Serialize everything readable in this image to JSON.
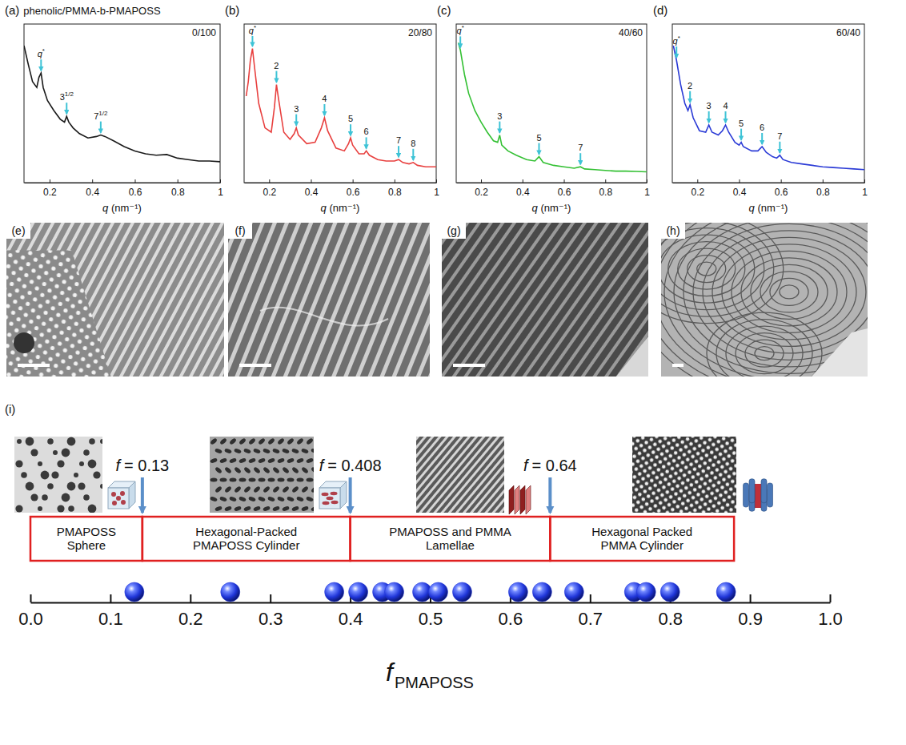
{
  "chart_data": [
    {
      "type": "line",
      "panel": "(a)",
      "title": "phenolic/PMMA-b-PMAPOSS",
      "subtitle": "0/100",
      "x_label": "q (nm⁻¹)",
      "x": [
        0.08,
        0.1,
        0.12,
        0.14,
        0.15,
        0.16,
        0.17,
        0.19,
        0.22,
        0.25,
        0.27,
        0.28,
        0.29,
        0.31,
        0.34,
        0.38,
        0.42,
        0.44,
        0.46,
        0.5,
        0.55,
        0.6,
        0.65,
        0.7,
        0.75,
        0.8,
        0.85,
        0.9,
        0.95,
        1.0
      ],
      "values": [
        95,
        82,
        70,
        66,
        73,
        76,
        66,
        57,
        50,
        44,
        42,
        46,
        42,
        38,
        34,
        31,
        32,
        33,
        32,
        29,
        25,
        22,
        20,
        19,
        19.5,
        17,
        16,
        15,
        15,
        14.5
      ],
      "color": "#1a1a1a",
      "xlim": [
        0.08,
        1.0
      ],
      "xticks": [
        0.2,
        0.4,
        0.6,
        0.8,
        1
      ],
      "ylim": [
        0,
        110
      ],
      "tick_labels": "x",
      "peaks": [
        {
          "q": 0.16,
          "label": "q",
          "sup": "*"
        },
        {
          "q": 0.28,
          "label": "3",
          "sup": "1/2"
        },
        {
          "q": 0.44,
          "label": "7",
          "sup": "1/2"
        }
      ]
    },
    {
      "type": "line",
      "panel": "(b)",
      "subtitle": "20/80",
      "x_label": "q (nm⁻¹)",
      "x": [
        0.09,
        0.1,
        0.11,
        0.12,
        0.13,
        0.15,
        0.18,
        0.21,
        0.225,
        0.235,
        0.245,
        0.27,
        0.3,
        0.32,
        0.33,
        0.34,
        0.38,
        0.42,
        0.45,
        0.465,
        0.48,
        0.52,
        0.56,
        0.58,
        0.59,
        0.6,
        0.63,
        0.655,
        0.665,
        0.68,
        0.72,
        0.76,
        0.8,
        0.82,
        0.84,
        0.87,
        0.89,
        0.91,
        0.95,
        1.0
      ],
      "values": [
        60,
        70,
        85,
        93,
        80,
        55,
        38,
        35,
        52,
        68,
        58,
        35,
        30,
        34,
        38,
        33,
        27,
        28,
        38,
        45,
        36,
        24,
        22,
        27,
        31,
        26,
        20,
        20,
        22,
        19,
        16,
        15,
        15,
        16,
        14,
        13,
        14,
        12,
        11,
        11
      ],
      "color": "#e8403f",
      "xlim": [
        0.08,
        1.0
      ],
      "xticks": [
        0.2,
        0.4,
        0.6,
        0.8,
        1
      ],
      "ylim": [
        0,
        110
      ],
      "tick_labels": "x",
      "peaks": [
        {
          "q": 0.12,
          "label": "q",
          "sup": "*"
        },
        {
          "q": 0.235,
          "label": "2"
        },
        {
          "q": 0.33,
          "label": "3"
        },
        {
          "q": 0.465,
          "label": "4"
        },
        {
          "q": 0.59,
          "label": "5"
        },
        {
          "q": 0.665,
          "label": "6"
        },
        {
          "q": 0.82,
          "label": "7"
        },
        {
          "q": 0.89,
          "label": "8"
        }
      ]
    },
    {
      "type": "line",
      "panel": "(c)",
      "subtitle": "40/60",
      "x_label": "q (nm⁻¹)",
      "x": [
        0.09,
        0.1,
        0.12,
        0.14,
        0.17,
        0.2,
        0.23,
        0.26,
        0.28,
        0.29,
        0.3,
        0.33,
        0.37,
        0.42,
        0.46,
        0.48,
        0.5,
        0.55,
        0.6,
        0.65,
        0.68,
        0.7,
        0.75,
        0.8,
        0.85,
        0.9,
        0.95,
        1.0
      ],
      "values": [
        97,
        92,
        75,
        62,
        50,
        42,
        35,
        29,
        28,
        33,
        26,
        22,
        19,
        16,
        15,
        18,
        14,
        12,
        11,
        10,
        11,
        9.5,
        9,
        8.5,
        8,
        8,
        7.8,
        7.5
      ],
      "color": "#33c033",
      "xlim": [
        0.08,
        1.0
      ],
      "xticks": [
        0.2,
        0.4,
        0.6,
        0.8,
        1
      ],
      "ylim": [
        0,
        110
      ],
      "tick_labels": "x",
      "peaks": [
        {
          "q": 0.1,
          "label": "q",
          "sup": "*"
        },
        {
          "q": 0.29,
          "label": "3"
        },
        {
          "q": 0.48,
          "label": "5"
        },
        {
          "q": 0.68,
          "label": "7"
        }
      ]
    },
    {
      "type": "line",
      "panel": "(d)",
      "subtitle": "60/40",
      "x_label": "q (nm⁻¹)",
      "x": [
        0.085,
        0.1,
        0.12,
        0.14,
        0.155,
        0.165,
        0.18,
        0.21,
        0.24,
        0.255,
        0.27,
        0.3,
        0.32,
        0.335,
        0.35,
        0.38,
        0.4,
        0.41,
        0.42,
        0.46,
        0.49,
        0.51,
        0.53,
        0.56,
        0.58,
        0.595,
        0.61,
        0.65,
        0.7,
        0.75,
        0.8,
        0.85,
        0.9,
        0.95,
        1.0
      ],
      "values": [
        95,
        85,
        68,
        55,
        50,
        54,
        45,
        36,
        35,
        40,
        35,
        33,
        36,
        40,
        35,
        28,
        26,
        28,
        25,
        22,
        22,
        25,
        21,
        18,
        17,
        19,
        16,
        14,
        13,
        12,
        11,
        10.5,
        10,
        9.5,
        9
      ],
      "color": "#2b3bd6",
      "xlim": [
        0.08,
        1.0
      ],
      "xticks": [
        0.2,
        0.4,
        0.6,
        0.8,
        1
      ],
      "ylim": [
        0,
        110
      ],
      "tick_labels": "x",
      "peaks": [
        {
          "q": 0.1,
          "label": "q",
          "sup": "*"
        },
        {
          "q": 0.165,
          "label": "2"
        },
        {
          "q": 0.255,
          "label": "3"
        },
        {
          "q": 0.335,
          "label": "4"
        },
        {
          "q": 0.41,
          "label": "5"
        },
        {
          "q": 0.51,
          "label": "6"
        },
        {
          "q": 0.595,
          "label": "7"
        }
      ]
    },
    {
      "type": "scatter",
      "panel": "(i)",
      "x_label": "f",
      "x_label_sub": "PMAPOSS",
      "x": [
        0.13,
        0.25,
        0.38,
        0.41,
        0.44,
        0.455,
        0.49,
        0.51,
        0.54,
        0.61,
        0.64,
        0.68,
        0.755,
        0.77,
        0.8,
        0.87
      ],
      "color": "#1f35d8",
      "marker": "sphere",
      "xlim": [
        0,
        1
      ],
      "tick_labels": "x",
      "xticks": [
        {
          "value": 0,
          "label": "0.0"
        },
        {
          "value": 0.1,
          "label": "0.1"
        },
        {
          "value": 0.2,
          "label": "0.2"
        },
        {
          "value": 0.3,
          "label": "0.3"
        },
        {
          "value": 0.4,
          "label": "0.4"
        },
        {
          "value": 0.5,
          "label": "0.5"
        },
        {
          "value": 0.6,
          "label": "0.6"
        },
        {
          "value": 0.7,
          "label": "0.7"
        },
        {
          "value": 0.8,
          "label": "0.8"
        },
        {
          "value": 0.9,
          "label": "0.9"
        },
        {
          "value": 1,
          "label": "1.0"
        }
      ],
      "regions": [
        {
          "label": "PMAPOSS Sphere",
          "start": 0,
          "end": 0.14
        },
        {
          "label": "Hexagonal-Packed PMAPOSS Cylinder",
          "start": 0.14,
          "end": 0.4
        },
        {
          "label": "PMAPOSS and PMMA Lamellae",
          "start": 0.4,
          "end": 0.65
        },
        {
          "label": "Hexagonal Packed PMMA Cylinder",
          "start": 0.65,
          "end": 0.88
        }
      ],
      "annotations": [
        {
          "symbol": "f",
          "text": "= 0.13"
        },
        {
          "symbol": "f",
          "text": "= 0.408"
        },
        {
          "symbol": "f",
          "text": "= 0.64"
        }
      ]
    }
  ],
  "images": [
    "(e)",
    "(f)",
    "(g)",
    "(h)"
  ]
}
